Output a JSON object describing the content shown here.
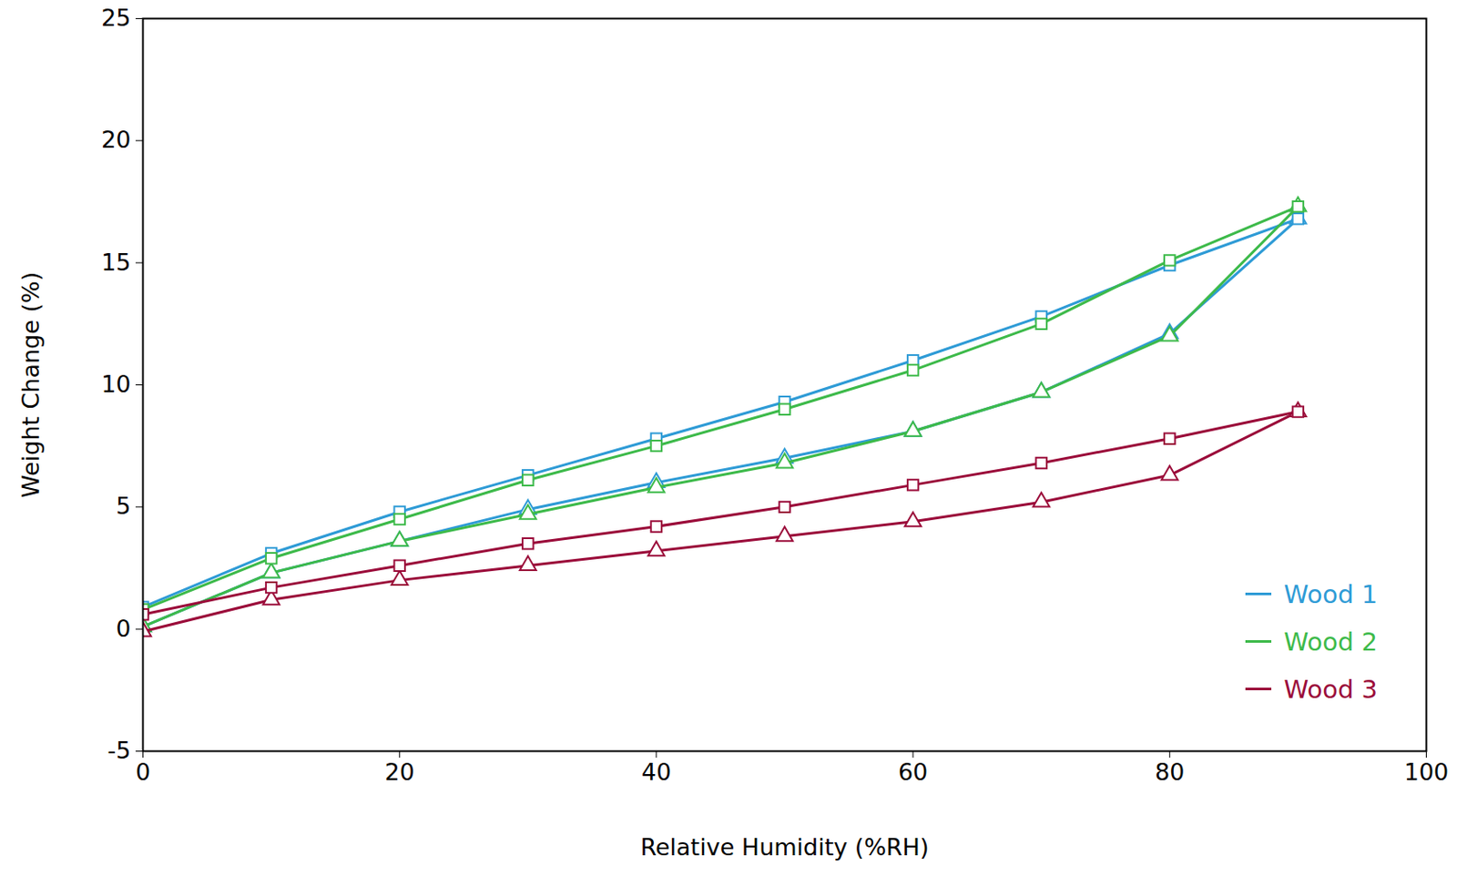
{
  "chart_data": {
    "type": "line",
    "x_label": "Relative Humidity (%RH)",
    "y_label": "Weight Change (%)",
    "x": [
      0,
      10,
      20,
      30,
      40,
      50,
      60,
      70,
      80,
      90
    ],
    "xlim": [
      0,
      100
    ],
    "xticks": [
      0,
      20,
      40,
      60,
      80,
      100
    ],
    "ylim": [
      -5,
      25
    ],
    "yticks": [
      -5,
      0,
      5,
      10,
      15,
      20,
      25
    ],
    "grid": false,
    "legend": "lower right",
    "series": [
      {
        "name": "Wood 1",
        "color": "#2e9bd6",
        "marker": "triangle",
        "values": [
          0.1,
          2.3,
          3.6,
          4.9,
          6.0,
          7.0,
          8.1,
          9.7,
          12.1,
          16.8
        ]
      },
      {
        "name": "Wood 1",
        "color": "#2e9bd6",
        "marker": "square",
        "values": [
          0.9,
          3.1,
          4.8,
          6.3,
          7.8,
          9.3,
          11.0,
          12.8,
          14.9,
          16.8
        ]
      },
      {
        "name": "Wood 2",
        "color": "#3dba4a",
        "marker": "triangle",
        "values": [
          0.1,
          2.3,
          3.6,
          4.7,
          5.8,
          6.8,
          8.1,
          9.7,
          12.0,
          17.3
        ]
      },
      {
        "name": "Wood 2",
        "color": "#3dba4a",
        "marker": "square",
        "values": [
          0.8,
          2.9,
          4.5,
          6.1,
          7.5,
          9.0,
          10.6,
          12.5,
          15.1,
          17.3
        ]
      },
      {
        "name": "Wood 3",
        "color": "#9b0c3a",
        "marker": "triangle",
        "values": [
          -0.1,
          1.2,
          2.0,
          2.6,
          3.2,
          3.8,
          4.4,
          5.2,
          6.3,
          8.9
        ]
      },
      {
        "name": "Wood 3",
        "color": "#9b0c3a",
        "marker": "square",
        "values": [
          0.6,
          1.7,
          2.6,
          3.5,
          4.2,
          5.0,
          5.9,
          6.8,
          7.8,
          8.9
        ]
      }
    ]
  }
}
